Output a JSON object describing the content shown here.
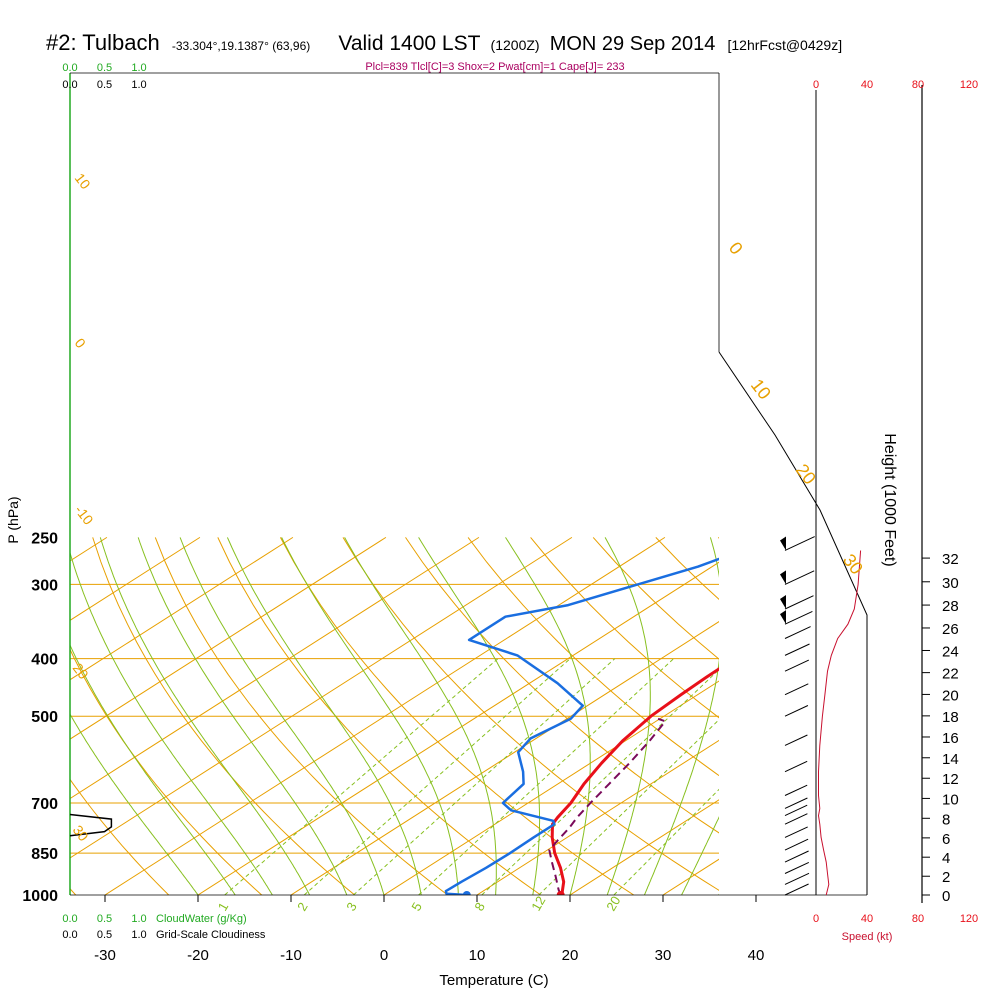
{
  "header": {
    "station": "#2: Tulbach",
    "coords": "-33.304°,19.1387° (63,96)",
    "valid": "Valid 1400 LST",
    "utc": "(1200Z)",
    "date": "MON 29 Sep 2014",
    "forecast": "[12hrFcst@0429z]",
    "indices": "Plcl=839 Tlcl[C]=3 Shox=2 Pwat[cm]=1 Cape[J]= 233"
  },
  "colors": {
    "temperature": "#e8101a",
    "dewpoint": "#1a6ee0",
    "parcel": "#7a0a5a",
    "isotherm": "#e8a000",
    "moist_adiabat": "#88c020",
    "mixing_ratio": "#88c020",
    "cloud": "#22aa22",
    "indices": "#aa0060"
  },
  "chart_data": {
    "type": "line",
    "title": "#2: Tulbach Valid 1400 LST (1200Z) MON 29 Sep 2014",
    "xlabel": "Temperature (C)",
    "ylabel": "P (hPa)",
    "xlim": [
      -34,
      46
    ],
    "ylim": [
      1000,
      250
    ],
    "x_ticks": [
      "-30",
      "-20",
      "-10",
      "0",
      "10",
      "20",
      "30",
      "40"
    ],
    "y_ticks": [
      "250",
      "300",
      "400",
      "500",
      "700",
      "850",
      "1000"
    ],
    "grid": true,
    "isotherm_labels": [
      "30",
      "20",
      "10",
      "0",
      "-10",
      "20",
      "-10",
      "0",
      "10",
      "30"
    ],
    "mixing_ratio_labels": [
      "1",
      "2",
      "3",
      "5",
      "8",
      "12",
      "20"
    ],
    "series": [
      {
        "kind": "temperature",
        "points": [
          [
            0.8,
            263
          ],
          [
            0.3,
            268
          ],
          [
            -0.3,
            275
          ],
          [
            -0.8,
            285
          ],
          [
            -1.2,
            300
          ],
          [
            -1.4,
            320
          ],
          [
            -1.6,
            345
          ],
          [
            -2.0,
            370
          ],
          [
            -2.1,
            385
          ],
          [
            -2.1,
            400
          ],
          [
            -2.0,
            430
          ],
          [
            -1.8,
            460
          ],
          [
            -1.4,
            500
          ],
          [
            -0.3,
            550
          ],
          [
            1.2,
            600
          ],
          [
            2.8,
            650
          ],
          [
            4.6,
            700
          ],
          [
            5.6,
            740
          ],
          [
            6.2,
            760
          ],
          [
            8.4,
            800
          ],
          [
            11.3,
            850
          ],
          [
            14.4,
            900
          ],
          [
            17.1,
            950
          ],
          [
            18.8,
            992
          ],
          [
            19.0,
            1000
          ]
        ]
      },
      {
        "kind": "dewpoint",
        "points": [
          [
            -19.5,
            263
          ],
          [
            -21.5,
            280
          ],
          [
            -25.0,
            300
          ],
          [
            -29.0,
            325
          ],
          [
            -33.8,
            340
          ],
          [
            -33.8,
            372
          ],
          [
            -26.0,
            395
          ],
          [
            -17.0,
            440
          ],
          [
            -10.5,
            480
          ],
          [
            -9.6,
            505
          ],
          [
            -10.6,
            545
          ],
          [
            -9.6,
            575
          ],
          [
            -5.8,
            620
          ],
          [
            -3.7,
            650
          ],
          [
            -2.7,
            700
          ],
          [
            -0.6,
            720
          ],
          [
            5.7,
            750
          ],
          [
            6.4,
            760
          ],
          [
            6.4,
            800
          ],
          [
            6.5,
            850
          ],
          [
            6.4,
            900
          ],
          [
            6.1,
            950
          ],
          [
            6.0,
            985
          ],
          [
            6.5,
            995
          ],
          [
            8.9,
            1000
          ]
        ]
      },
      {
        "kind": "parcel",
        "points": [
          [
            19.0,
            1000
          ],
          [
            17.9,
            980
          ],
          [
            15.3,
            930
          ],
          [
            12.5,
            880
          ],
          [
            10.2,
            840
          ],
          [
            9.5,
            810
          ],
          [
            8.6,
            770
          ],
          [
            7.7,
            740
          ],
          [
            6.7,
            700
          ],
          [
            5.5,
            650
          ],
          [
            4.2,
            600
          ],
          [
            2.6,
            550
          ],
          [
            1.0,
            510
          ],
          [
            -0.2,
            505
          ]
        ]
      }
    ],
    "secondary_axes": {
      "height": {
        "label": "Height (1000 Feet)",
        "ticks": [
          "0",
          "2",
          "4",
          "6",
          "8",
          "10",
          "12",
          "14",
          "16",
          "18",
          "20",
          "22",
          "24",
          "26",
          "28",
          "30",
          "32"
        ]
      },
      "wind_speed": {
        "label": "Speed (kt)",
        "ticks": [
          "0",
          "40",
          "80",
          "120"
        ]
      },
      "cloud_water": {
        "label": "CloudWater (g/Kg)",
        "ticks": [
          "0.0",
          "0.5",
          "1.0"
        ]
      },
      "cloudiness": {
        "label": "Grid-Scale Cloudiness",
        "ticks": [
          "0.0",
          "0.5",
          "1.0"
        ]
      }
    },
    "wind_speed_profile_kt": [
      [
        8,
        1000
      ],
      [
        10,
        960
      ],
      [
        9,
        920
      ],
      [
        8,
        880
      ],
      [
        6,
        840
      ],
      [
        4,
        800
      ],
      [
        3,
        760
      ],
      [
        2,
        735
      ],
      [
        3,
        715
      ],
      [
        2,
        680
      ],
      [
        2,
        620
      ],
      [
        3,
        560
      ],
      [
        5,
        500
      ],
      [
        7,
        460
      ],
      [
        9,
        420
      ],
      [
        12,
        395
      ],
      [
        17,
        370
      ],
      [
        25,
        350
      ],
      [
        30,
        330
      ],
      [
        33,
        300
      ],
      [
        35,
        263
      ]
    ],
    "cloudiness_profile": [
      [
        0,
        732
      ],
      [
        0.6,
        745
      ],
      [
        0.6,
        768
      ],
      [
        0.5,
        782
      ],
      [
        0,
        795
      ]
    ],
    "surface_markers": {
      "temperature_c": 19.0,
      "dewpoint_c": 8.9
    }
  }
}
